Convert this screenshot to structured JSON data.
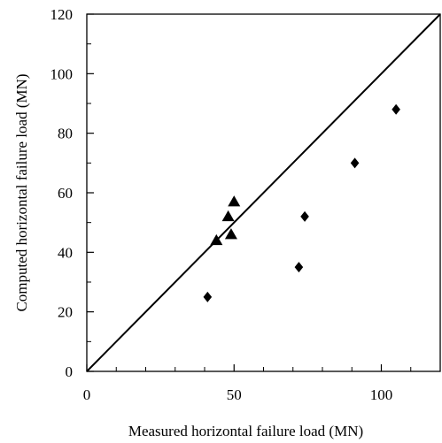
{
  "chart_data": {
    "type": "scatter",
    "title": "",
    "xlabel": "Measured horizontal failure load (MN)",
    "ylabel": "Computed horizontal failure load (MN)",
    "xlim": [
      0,
      120
    ],
    "ylim": [
      0,
      120
    ],
    "x_major_ticks": [
      0,
      50,
      100
    ],
    "x_minor_ticks": [
      10,
      20,
      30,
      40,
      60,
      70,
      80,
      90,
      110
    ],
    "y_major_ticks": [
      0,
      20,
      40,
      60,
      80,
      100,
      120
    ],
    "y_minor_ticks": [
      10,
      30,
      50,
      70,
      90,
      110
    ],
    "x_tick_labels": [
      "0",
      "50",
      "100"
    ],
    "y_tick_labels": [
      "0",
      "20",
      "40",
      "60",
      "80",
      "100",
      "120"
    ],
    "grid": false,
    "legend": "none",
    "reference_line": {
      "from": [
        0,
        0
      ],
      "to": [
        120,
        120
      ],
      "color": "#000000"
    },
    "series": [
      {
        "marker": "triangle",
        "color": "#000000",
        "points": [
          {
            "x": 44,
            "y": 44
          },
          {
            "x": 48,
            "y": 52
          },
          {
            "x": 49,
            "y": 46
          },
          {
            "x": 50,
            "y": 57
          }
        ]
      },
      {
        "marker": "diamond",
        "color": "#000000",
        "points": [
          {
            "x": 41,
            "y": 25
          },
          {
            "x": 72,
            "y": 35
          },
          {
            "x": 74,
            "y": 52
          },
          {
            "x": 91,
            "y": 70
          },
          {
            "x": 105,
            "y": 88
          }
        ]
      }
    ]
  }
}
